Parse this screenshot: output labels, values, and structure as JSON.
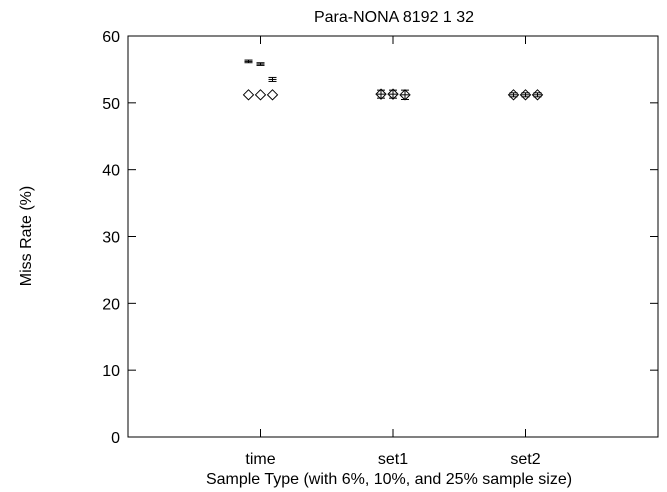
{
  "chart_data": {
    "type": "scatter",
    "title": "Para-NONA 8192 1 32",
    "xlabel": "Sample Type (with 6%, 10%, and 25% sample size)",
    "ylabel": "Miss Rate (%)",
    "categories": [
      "time",
      "set1",
      "set2"
    ],
    "ylim": [
      0,
      60
    ],
    "yticks": [
      0,
      10,
      20,
      30,
      40,
      50,
      60
    ],
    "grid": false,
    "sample_sizes": [
      "6%",
      "10%",
      "25%"
    ],
    "series": [
      {
        "values": [
          [
            51.2,
            51.2,
            51.2
          ],
          [
            51.3,
            51.3,
            51.2
          ],
          [
            51.2,
            51.2,
            51.2
          ]
        ],
        "marker": "diamond"
      }
    ],
    "error_bars": {
      "time": [
        {
          "center": 56.2,
          "low": 56.0,
          "high": 56.4
        },
        {
          "center": 55.8,
          "low": 55.6,
          "high": 56.0
        },
        {
          "center": 53.5,
          "low": 53.2,
          "high": 53.8
        }
      ],
      "set1": [
        {
          "center": 51.3,
          "low": 50.7,
          "high": 51.9
        },
        {
          "center": 51.3,
          "low": 50.7,
          "high": 51.9
        },
        {
          "center": 51.2,
          "low": 50.5,
          "high": 51.9
        }
      ],
      "set2": [
        {
          "center": 51.2,
          "low": 50.9,
          "high": 51.5
        },
        {
          "center": 51.2,
          "low": 50.9,
          "high": 51.5
        },
        {
          "center": 51.2,
          "low": 50.9,
          "high": 51.5
        }
      ]
    }
  }
}
